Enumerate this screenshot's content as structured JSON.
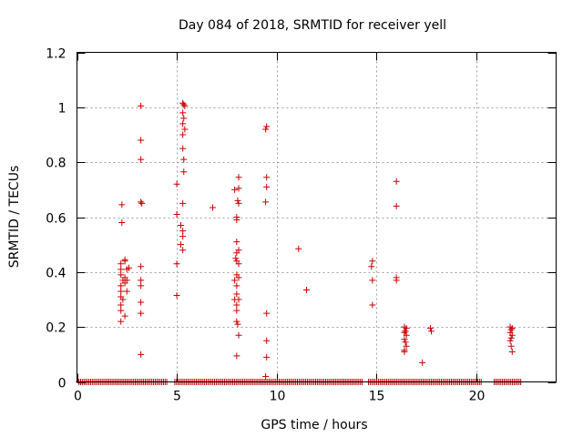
{
  "chart_data": {
    "type": "scatter",
    "title": "Day 084 of 2018, SRMTID for receiver yell",
    "xlabel": "GPS time / hours",
    "ylabel": "SRMTID / TECUs",
    "xlim": [
      0,
      24
    ],
    "ylim": [
      0,
      1.2
    ],
    "xticks": [
      0,
      5,
      10,
      15,
      20
    ],
    "xtick_labels": [
      "0",
      "5",
      "10",
      "15",
      "20"
    ],
    "yticks": [
      0,
      0.2,
      0.4,
      0.6,
      0.8,
      1.0,
      1.2
    ],
    "ytick_labels": [
      "0",
      "0.2",
      "0.4",
      "0.6",
      "0.8",
      "1",
      "1.2"
    ],
    "grid": true,
    "marker": "+",
    "series": [
      {
        "name": "SRMTID",
        "color": "#cc0000",
        "points": [
          [
            2.2,
            0.43
          ],
          [
            2.2,
            0.41
          ],
          [
            2.2,
            0.39
          ],
          [
            2.2,
            0.35
          ],
          [
            2.2,
            0.33
          ],
          [
            2.2,
            0.31
          ],
          [
            2.2,
            0.28
          ],
          [
            2.2,
            0.26
          ],
          [
            2.2,
            0.22
          ],
          [
            2.25,
            0.645
          ],
          [
            2.25,
            0.58
          ],
          [
            2.3,
            0.37
          ],
          [
            2.3,
            0.3
          ],
          [
            2.4,
            0.445
          ],
          [
            2.4,
            0.44
          ],
          [
            2.4,
            0.38
          ],
          [
            2.4,
            0.36
          ],
          [
            2.4,
            0.24
          ],
          [
            2.5,
            0.41
          ],
          [
            2.5,
            0.37
          ],
          [
            2.5,
            0.33
          ],
          [
            2.6,
            0.415
          ],
          [
            3.2,
            1.005
          ],
          [
            3.2,
            0.88
          ],
          [
            3.2,
            0.81
          ],
          [
            3.2,
            0.655
          ],
          [
            3.25,
            0.65
          ],
          [
            3.2,
            0.42
          ],
          [
            3.2,
            0.37
          ],
          [
            3.2,
            0.35
          ],
          [
            3.2,
            0.29
          ],
          [
            3.2,
            0.25
          ],
          [
            3.2,
            0.1
          ],
          [
            5.0,
            0.72
          ],
          [
            5.0,
            0.61
          ],
          [
            5.0,
            0.43
          ],
          [
            5.0,
            0.315
          ],
          [
            5.3,
            1.015
          ],
          [
            5.35,
            1.01
          ],
          [
            5.4,
            1.005
          ],
          [
            5.3,
            0.98
          ],
          [
            5.35,
            0.96
          ],
          [
            5.3,
            0.94
          ],
          [
            5.4,
            0.92
          ],
          [
            5.3,
            0.9
          ],
          [
            5.3,
            0.85
          ],
          [
            5.35,
            0.81
          ],
          [
            5.35,
            0.765
          ],
          [
            5.3,
            0.65
          ],
          [
            5.2,
            0.57
          ],
          [
            5.3,
            0.55
          ],
          [
            5.3,
            0.53
          ],
          [
            5.2,
            0.5
          ],
          [
            5.3,
            0.48
          ],
          [
            6.8,
            0.635
          ],
          [
            7.9,
            0.7
          ],
          [
            8.0,
            0.6
          ],
          [
            8.0,
            0.59
          ],
          [
            8.1,
            0.745
          ],
          [
            8.1,
            0.705
          ],
          [
            8.05,
            0.66
          ],
          [
            8.1,
            0.65
          ],
          [
            8.0,
            0.51
          ],
          [
            8.1,
            0.48
          ],
          [
            8.0,
            0.47
          ],
          [
            7.95,
            0.45
          ],
          [
            8.0,
            0.44
          ],
          [
            8.1,
            0.43
          ],
          [
            8.0,
            0.39
          ],
          [
            7.9,
            0.37
          ],
          [
            8.1,
            0.38
          ],
          [
            8.0,
            0.35
          ],
          [
            8.0,
            0.32
          ],
          [
            7.9,
            0.3
          ],
          [
            8.1,
            0.3
          ],
          [
            8.0,
            0.28
          ],
          [
            8.0,
            0.26
          ],
          [
            8.0,
            0.22
          ],
          [
            8.05,
            0.21
          ],
          [
            8.1,
            0.17
          ],
          [
            8.0,
            0.095
          ],
          [
            9.5,
            0.93
          ],
          [
            9.45,
            0.92
          ],
          [
            9.5,
            0.745
          ],
          [
            9.5,
            0.71
          ],
          [
            9.45,
            0.655
          ],
          [
            9.5,
            0.25
          ],
          [
            9.5,
            0.15
          ],
          [
            9.5,
            0.09
          ],
          [
            9.45,
            0.02
          ],
          [
            11.1,
            0.485
          ],
          [
            11.5,
            0.335
          ],
          [
            14.8,
            0.44
          ],
          [
            14.75,
            0.42
          ],
          [
            14.8,
            0.37
          ],
          [
            14.8,
            0.28
          ],
          [
            16.0,
            0.73
          ],
          [
            16.0,
            0.64
          ],
          [
            16.0,
            0.38
          ],
          [
            16.0,
            0.37
          ],
          [
            16.4,
            0.2
          ],
          [
            16.5,
            0.195
          ],
          [
            16.45,
            0.185
          ],
          [
            16.4,
            0.18
          ],
          [
            16.5,
            0.17
          ],
          [
            16.4,
            0.155
          ],
          [
            16.45,
            0.145
          ],
          [
            16.5,
            0.13
          ],
          [
            16.4,
            0.115
          ],
          [
            16.4,
            0.11
          ],
          [
            17.3,
            0.07
          ],
          [
            17.7,
            0.195
          ],
          [
            17.75,
            0.185
          ],
          [
            21.7,
            0.2
          ],
          [
            21.8,
            0.195
          ],
          [
            21.75,
            0.19
          ],
          [
            21.7,
            0.18
          ],
          [
            21.8,
            0.17
          ],
          [
            21.75,
            0.16
          ],
          [
            21.7,
            0.15
          ],
          [
            21.75,
            0.13
          ],
          [
            21.8,
            0.11
          ]
        ],
        "zero_segments": [
          [
            0.1,
            4.5
          ],
          [
            4.9,
            14.3
          ],
          [
            14.6,
            20.3
          ],
          [
            20.9,
            22.3
          ]
        ]
      }
    ]
  }
}
